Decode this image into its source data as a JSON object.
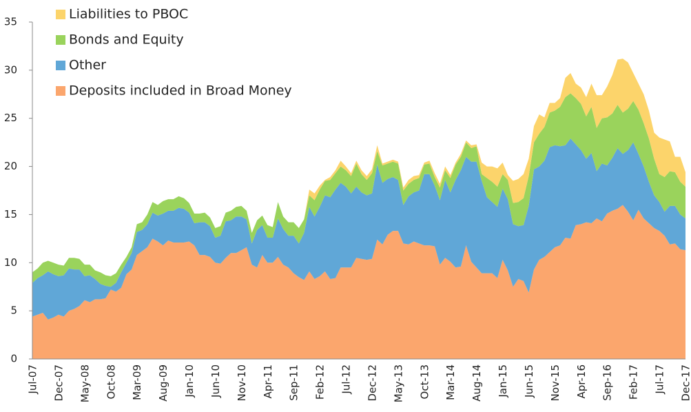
{
  "chart_data": {
    "type": "stacked_area",
    "categories": [
      "Jul-07",
      null,
      null,
      null,
      null,
      "Dec-07",
      null,
      null,
      null,
      null,
      "May-08",
      null,
      null,
      null,
      null,
      "Oct-08",
      null,
      null,
      null,
      null,
      "Mar-09",
      null,
      null,
      null,
      null,
      "Aug-09",
      null,
      null,
      null,
      null,
      "Jan-10",
      null,
      null,
      null,
      null,
      "Jun-10",
      null,
      null,
      null,
      null,
      "Nov-10",
      null,
      null,
      null,
      null,
      "Apr-11",
      null,
      null,
      null,
      null,
      "Sep-11",
      null,
      null,
      null,
      null,
      "Feb-12",
      null,
      null,
      null,
      null,
      "Jul-12",
      null,
      null,
      null,
      null,
      "Dec-12",
      null,
      null,
      null,
      null,
      "May-13",
      null,
      null,
      null,
      null,
      "Oct-13",
      null,
      null,
      null,
      null,
      "Mar-14",
      null,
      null,
      null,
      null,
      "Aug-14",
      null,
      null,
      null,
      null,
      "Jan-15",
      null,
      null,
      null,
      null,
      "Jun-15",
      null,
      null,
      null,
      null,
      "Nov-15",
      null,
      null,
      null,
      null,
      "Apr-16",
      null,
      null,
      null,
      null,
      "Sep-16",
      null,
      null,
      null,
      null,
      "Feb-17",
      null,
      null,
      null,
      null,
      "Jul-17",
      null,
      null,
      null,
      null,
      "Dec-17"
    ],
    "series": [
      {
        "name": "Deposits included in Broad Money",
        "color": "#fba66d",
        "values": [
          4.4,
          4.6,
          4.8,
          4.1,
          4.3,
          4.6,
          4.4,
          5.0,
          5.2,
          5.5,
          6.1,
          5.9,
          6.2,
          6.2,
          6.3,
          7.2,
          7.0,
          7.4,
          8.8,
          9.3,
          10.8,
          11.2,
          11.6,
          12.5,
          12.2,
          11.8,
          12.3,
          12.1,
          12.1,
          12.1,
          12.2,
          11.8,
          10.8,
          10.8,
          10.6,
          10.0,
          9.9,
          10.5,
          11.0,
          11.0,
          11.3,
          11.6,
          9.8,
          9.5,
          10.8,
          10.0,
          10.0,
          10.6,
          9.8,
          9.5,
          8.9,
          8.5,
          8.2,
          9.1,
          8.3,
          8.6,
          9.1,
          8.3,
          8.4,
          9.5,
          9.5,
          9.5,
          10.5,
          10.4,
          10.3,
          10.4,
          12.4,
          11.9,
          12.9,
          13.3,
          13.3,
          12.0,
          11.9,
          12.2,
          12.0,
          11.8,
          11.8,
          11.7,
          9.8,
          10.5,
          10.1,
          9.5,
          9.6,
          11.8,
          10.1,
          9.5,
          8.9,
          8.9,
          8.9,
          8.4,
          10.3,
          9.2,
          7.5,
          8.3,
          8.1,
          6.9,
          9.3,
          10.3,
          10.6,
          11.1,
          11.6,
          11.8,
          12.6,
          12.5,
          13.9,
          14.0,
          14.2,
          14.1,
          14.6,
          14.3,
          15.1,
          15.4,
          15.6,
          16.0,
          15.3,
          14.4,
          15.5,
          14.6,
          14.1,
          13.6,
          13.3,
          12.8,
          11.9,
          12.0,
          11.4,
          11.3
        ]
      },
      {
        "name": "Other",
        "color": "#60a7d7",
        "values": [
          3.5,
          3.8,
          3.9,
          5.0,
          4.5,
          4.0,
          4.3,
          4.4,
          4.1,
          3.8,
          2.5,
          2.8,
          2.1,
          1.6,
          1.3,
          0.3,
          0.9,
          1.6,
          1.2,
          1.7,
          2.4,
          2.2,
          2.4,
          2.7,
          2.7,
          3.3,
          3.1,
          3.3,
          3.6,
          3.5,
          3.0,
          2.3,
          3.4,
          3.4,
          3.2,
          2.6,
          2.9,
          3.8,
          3.4,
          3.8,
          3.5,
          2.9,
          2.2,
          3.9,
          3.1,
          2.6,
          2.6,
          4.0,
          3.7,
          3.3,
          3.9,
          3.5,
          4.9,
          6.7,
          6.5,
          7.2,
          7.9,
          8.5,
          9.2,
          8.8,
          8.4,
          7.7,
          7.4,
          6.9,
          6.7,
          6.8,
          7.8,
          6.4,
          5.8,
          5.6,
          5.3,
          4.0,
          5.0,
          5.1,
          5.5,
          7.4,
          7.4,
          6.3,
          6.7,
          8.1,
          7.2,
          9.1,
          10.0,
          9.2,
          10.4,
          11.0,
          9.6,
          7.9,
          7.4,
          7.4,
          7.4,
          7.4,
          6.5,
          5.5,
          5.8,
          9.0,
          10.4,
          9.7,
          10.0,
          10.9,
          10.6,
          10.3,
          9.6,
          10.4,
          8.4,
          7.7,
          6.6,
          7.3,
          4.9,
          6.0,
          5.0,
          5.5,
          6.3,
          5.3,
          6.4,
          8.1,
          5.8,
          5.4,
          4.3,
          3.4,
          3.0,
          2.5,
          4.0,
          3.9,
          3.6,
          3.3
        ]
      },
      {
        "name": "Bonds and Equity",
        "color": "#9ad35c",
        "values": [
          1.1,
          1.0,
          1.3,
          1.1,
          1.2,
          1.2,
          1.0,
          1.1,
          1.2,
          1.1,
          1.2,
          1.1,
          0.9,
          1.2,
          1.1,
          1.1,
          1.0,
          0.8,
          0.6,
          0.6,
          0.8,
          0.8,
          1.0,
          1.1,
          1.1,
          1.3,
          1.2,
          1.2,
          1.2,
          1.1,
          1.0,
          1.0,
          0.9,
          1.0,
          0.9,
          1.0,
          1.0,
          0.9,
          1.0,
          1.0,
          1.1,
          0.9,
          1.1,
          1.0,
          1.0,
          1.3,
          1.1,
          1.7,
          1.3,
          1.4,
          1.4,
          1.6,
          1.4,
          1.2,
          1.7,
          1.8,
          1.5,
          1.8,
          1.7,
          1.7,
          1.7,
          1.8,
          2.4,
          1.9,
          1.6,
          2.1,
          1.4,
          1.8,
          1.6,
          1.6,
          1.7,
          1.5,
          1.3,
          1.3,
          1.3,
          1.0,
          1.1,
          0.9,
          1.3,
          1.0,
          1.5,
          1.6,
          1.4,
          1.5,
          1.4,
          1.6,
          0.7,
          2.0,
          2.1,
          2.1,
          1.5,
          2.0,
          2.2,
          2.5,
          2.8,
          3.1,
          2.8,
          3.4,
          3.5,
          3.6,
          3.6,
          4.1,
          5.0,
          4.7,
          4.8,
          4.8,
          4.4,
          4.8,
          4.5,
          4.7,
          5.0,
          4.6,
          4.5,
          4.3,
          4.3,
          4.3,
          4.6,
          4.5,
          4.5,
          3.8,
          2.9,
          3.6,
          3.6,
          3.5,
          3.4,
          3.3
        ]
      },
      {
        "name": "Liabilities to PBOC",
        "color": "#fcd46b",
        "values": [
          0,
          0,
          0,
          0,
          0,
          0,
          0,
          0,
          0,
          0,
          0,
          0,
          0,
          0,
          0,
          0,
          0,
          0,
          0,
          0,
          0,
          0,
          0,
          0,
          0,
          0,
          0,
          0,
          0,
          0,
          0,
          0,
          0,
          0,
          0,
          0,
          0,
          0,
          0,
          0,
          0,
          0,
          0,
          0,
          0,
          0,
          0,
          0,
          0,
          0,
          0,
          0,
          0,
          0.6,
          0.7,
          0.4,
          0.1,
          0.3,
          0.3,
          0.6,
          0.4,
          0.3,
          0.3,
          0.4,
          0.4,
          0.4,
          0.6,
          0.2,
          0.2,
          0.2,
          0.2,
          0.3,
          0.4,
          0.4,
          0.3,
          0.2,
          0.3,
          0.4,
          0.4,
          0.4,
          0.3,
          0.2,
          0.3,
          0.2,
          0.3,
          0.2,
          1.2,
          1.2,
          1.6,
          1.9,
          1.2,
          0.5,
          2.3,
          2.4,
          2.5,
          1.8,
          1.7,
          2.0,
          1.0,
          1.0,
          0.8,
          0.9,
          2.0,
          2.1,
          1.5,
          1.7,
          2.0,
          2.4,
          3.4,
          2.4,
          3.2,
          4.0,
          4.7,
          5.6,
          4.8,
          2.9,
          2.7,
          3.0,
          2.9,
          2.7,
          3.8,
          3.9,
          3.1,
          1.6,
          2.6,
          1.5
        ]
      }
    ],
    "ylim": [
      0,
      35
    ],
    "yticks": [
      0,
      5,
      10,
      15,
      20,
      25,
      30,
      35
    ],
    "grid": false,
    "legend": "top-left"
  }
}
